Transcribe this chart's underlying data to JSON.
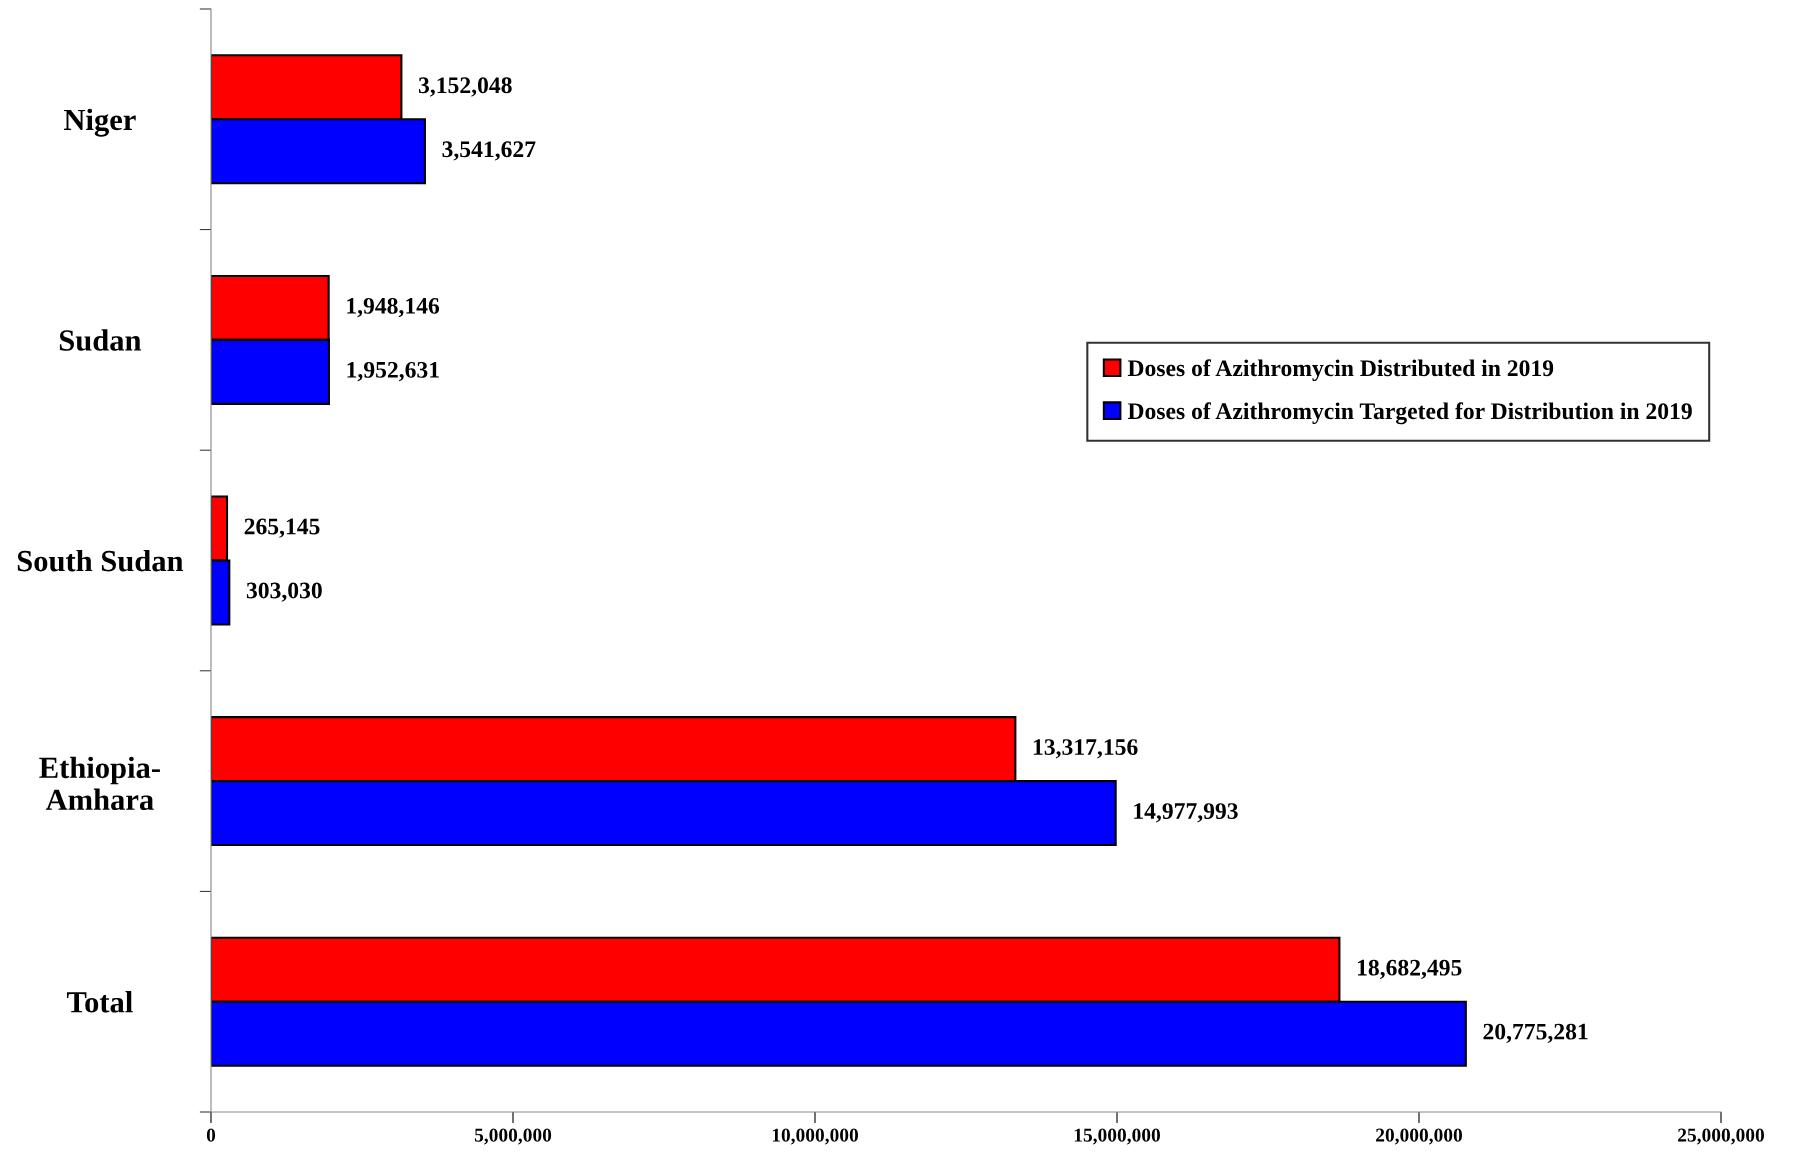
{
  "chart_data": {
    "type": "bar",
    "orientation": "horizontal",
    "categories": [
      "Niger",
      "Sudan",
      "South Sudan",
      "Ethiopia-\nAmhara",
      "Total"
    ],
    "series": [
      {
        "name": "Doses of Azithromycin Distributed in 2019",
        "color": "#ff0000",
        "values": [
          3152048,
          1948146,
          265145,
          13317156,
          18682495
        ],
        "value_labels": [
          "3,152,048",
          "1,948,146",
          "265,145",
          "13,317,156",
          "18,682,495"
        ]
      },
      {
        "name": "Doses of Azithromycin Targeted for Distribution in 2019",
        "color": "#0000ff",
        "values": [
          3541627,
          1952631,
          303030,
          14977993,
          20775281
        ],
        "value_labels": [
          "3,541,627",
          "1,952,631",
          "303,030",
          "14,977,993",
          "20,775,281"
        ]
      }
    ],
    "xlim": [
      0,
      25000000
    ],
    "xticks": [
      {
        "value": 0,
        "label": "0"
      },
      {
        "value": 5000000,
        "label": "5,000,000"
      },
      {
        "value": 10000000,
        "label": "10,000,000"
      },
      {
        "value": 15000000,
        "label": "15,000,000"
      },
      {
        "value": 20000000,
        "label": "20,000,000"
      },
      {
        "value": 25000000,
        "label": "25,000,000"
      }
    ],
    "legend": "right",
    "grid": false
  }
}
